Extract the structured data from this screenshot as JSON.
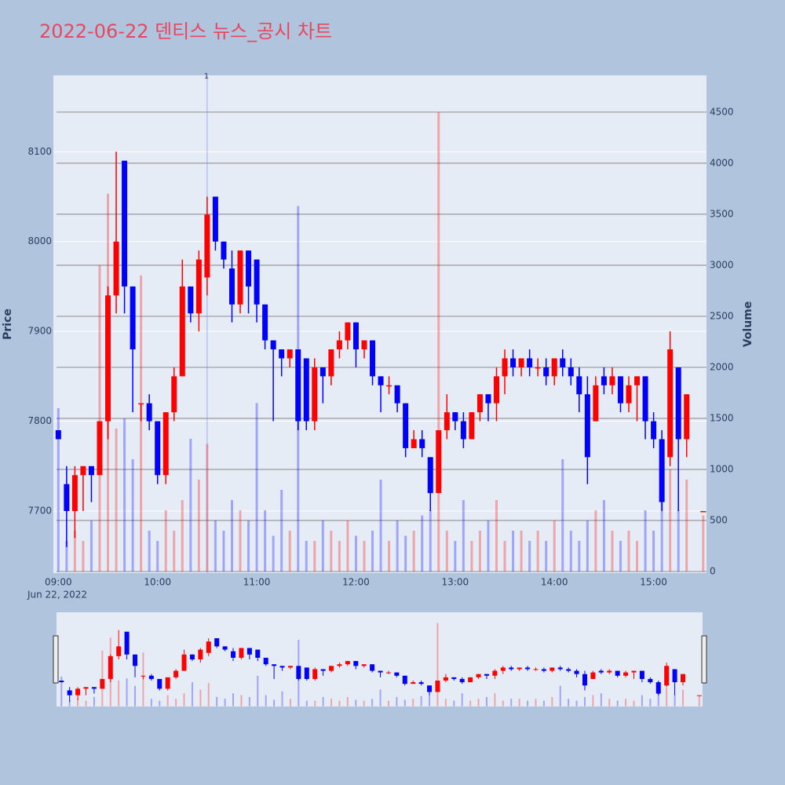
{
  "chart_data": {
    "type": "candlestick",
    "title": "2022-06-22 덴티스 뉴스_공시 차트",
    "y_label": "Price",
    "y2_label": "Volume",
    "x_date_label": "Jun 22, 2022",
    "increasing_color": "#ff0000",
    "decreasing_color": "#0000ff",
    "xlim": [
      "08:57",
      "15:32"
    ],
    "xticks": [
      "09:00",
      "10:00",
      "11:00",
      "12:00",
      "13:00",
      "14:00",
      "15:00"
    ],
    "ylim": [
      7631,
      8185
    ],
    "yticks": [
      7700,
      7800,
      7900,
      8000,
      8100
    ],
    "y2lim": [
      -15,
      4860
    ],
    "y2ticks": [
      0,
      500,
      1000,
      1500,
      2000,
      2500,
      3000,
      3500,
      4000,
      4500
    ],
    "annotations": [
      {
        "x": "10:30",
        "text": "1"
      }
    ],
    "x": [
      "09:00",
      "09:05",
      "09:10",
      "09:15",
      "09:20",
      "09:25",
      "09:30",
      "09:35",
      "09:40",
      "09:45",
      "09:50",
      "09:55",
      "10:00",
      "10:05",
      "10:10",
      "10:15",
      "10:20",
      "10:25",
      "10:30",
      "10:35",
      "10:40",
      "10:45",
      "10:50",
      "10:55",
      "11:00",
      "11:05",
      "11:10",
      "11:15",
      "11:20",
      "11:25",
      "11:30",
      "11:35",
      "11:40",
      "11:45",
      "11:50",
      "11:55",
      "12:00",
      "12:05",
      "12:10",
      "12:15",
      "12:20",
      "12:25",
      "12:30",
      "12:35",
      "12:40",
      "12:45",
      "12:50",
      "12:55",
      "13:00",
      "13:05",
      "13:10",
      "13:15",
      "13:20",
      "13:25",
      "13:30",
      "13:35",
      "13:40",
      "13:45",
      "13:50",
      "13:55",
      "14:00",
      "14:05",
      "14:10",
      "14:15",
      "14:20",
      "14:25",
      "14:30",
      "14:35",
      "14:40",
      "14:45",
      "14:50",
      "14:55",
      "15:00",
      "15:05",
      "15:10",
      "15:15",
      "15:20",
      "15:30"
    ],
    "open": [
      7790,
      7730,
      7700,
      7740,
      7750,
      7740,
      7800,
      7940,
      8090,
      7950,
      7820,
      7820,
      7800,
      7740,
      7810,
      7850,
      7950,
      7920,
      7960,
      8050,
      8000,
      7970,
      7930,
      7990,
      7980,
      7930,
      7890,
      7880,
      7870,
      7880,
      7870,
      7800,
      7860,
      7850,
      7880,
      7890,
      7910,
      7880,
      7890,
      7850,
      7840,
      7840,
      7820,
      7770,
      7780,
      7760,
      7720,
      7790,
      7810,
      7800,
      7780,
      7810,
      7830,
      7820,
      7850,
      7870,
      7860,
      7870,
      7860,
      7860,
      7850,
      7870,
      7860,
      7850,
      7830,
      7800,
      7850,
      7840,
      7850,
      7820,
      7840,
      7850,
      7800,
      7780,
      7760,
      7860,
      7780,
      7700
    ],
    "high": [
      7790,
      7750,
      7750,
      7750,
      7750,
      7800,
      7950,
      8100,
      8090,
      7950,
      7820,
      7830,
      7800,
      7810,
      7860,
      7980,
      7950,
      7990,
      8050,
      8050,
      8000,
      7990,
      7990,
      7990,
      7980,
      7930,
      7890,
      7880,
      7880,
      7880,
      7870,
      7870,
      7860,
      7880,
      7900,
      7910,
      7910,
      7890,
      7890,
      7850,
      7850,
      7840,
      7820,
      7790,
      7790,
      7760,
      7790,
      7830,
      7810,
      7810,
      7810,
      7830,
      7830,
      7860,
      7880,
      7880,
      7870,
      7880,
      7870,
      7870,
      7870,
      7880,
      7870,
      7860,
      7850,
      7850,
      7860,
      7860,
      7850,
      7850,
      7850,
      7850,
      7810,
      7790,
      7900,
      7860,
      7830,
      7700
    ],
    "low": [
      7780,
      7660,
      7670,
      7700,
      7710,
      7740,
      7780,
      7920,
      7920,
      7810,
      7800,
      7790,
      7730,
      7730,
      7800,
      7850,
      7910,
      7900,
      7940,
      7990,
      7970,
      7910,
      7920,
      7920,
      7910,
      7880,
      7800,
      7850,
      7860,
      7790,
      7790,
      7790,
      7820,
      7840,
      7870,
      7880,
      7860,
      7870,
      7840,
      7810,
      7830,
      7810,
      7760,
      7770,
      7760,
      7700,
      7720,
      7780,
      7790,
      7770,
      7780,
      7800,
      7800,
      7800,
      7830,
      7850,
      7850,
      7850,
      7850,
      7840,
      7840,
      7850,
      7840,
      7810,
      7730,
      7800,
      7830,
      7830,
      7810,
      7810,
      7800,
      7780,
      7770,
      7700,
      7750,
      7700,
      7760,
      7700
    ],
    "close": [
      7780,
      7700,
      7740,
      7750,
      7740,
      7800,
      7940,
      8000,
      7950,
      7880,
      7820,
      7800,
      7740,
      7810,
      7850,
      7950,
      7920,
      7980,
      8030,
      8000,
      7980,
      7930,
      7990,
      7950,
      7930,
      7890,
      7880,
      7870,
      7880,
      7800,
      7800,
      7860,
      7850,
      7880,
      7890,
      7910,
      7880,
      7890,
      7850,
      7840,
      7840,
      7820,
      7770,
      7780,
      7770,
      7720,
      7790,
      7810,
      7800,
      7780,
      7810,
      7830,
      7820,
      7850,
      7870,
      7860,
      7870,
      7860,
      7860,
      7850,
      7870,
      7860,
      7850,
      7830,
      7760,
      7840,
      7840,
      7850,
      7820,
      7840,
      7850,
      7800,
      7780,
      7710,
      7880,
      7780,
      7830,
      7700
    ],
    "volume": [
      1600,
      300,
      400,
      300,
      500,
      3000,
      3700,
      1400,
      1500,
      1100,
      2900,
      400,
      300,
      600,
      400,
      700,
      1300,
      900,
      1250,
      500,
      400,
      700,
      600,
      500,
      1650,
      600,
      350,
      800,
      400,
      3580,
      300,
      300,
      500,
      400,
      300,
      500,
      350,
      300,
      400,
      900,
      300,
      500,
      350,
      400,
      550,
      600,
      4500,
      400,
      300,
      700,
      300,
      400,
      500,
      700,
      300,
      400,
      400,
      300,
      400,
      300,
      500,
      1100,
      400,
      300,
      500,
      600,
      700,
      400,
      300,
      400,
      300,
      600,
      400,
      800,
      1000,
      600,
      900,
      550
    ]
  }
}
